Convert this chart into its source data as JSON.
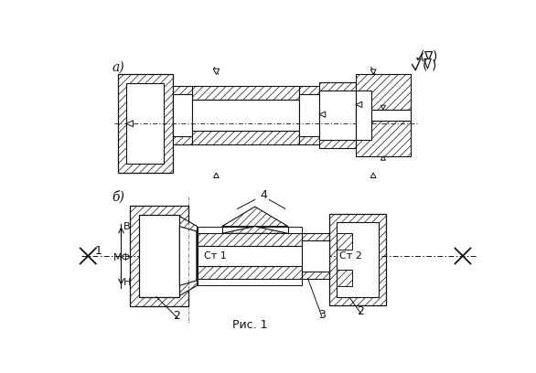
{
  "title": "Рис. 1",
  "bg_color": "#ffffff",
  "line_color": "#111111",
  "label_a": "а)",
  "label_b": "б)",
  "label_1": "1",
  "label_2": "2",
  "label_3": "3",
  "label_4": "4",
  "label_st1": "Ст 1",
  "label_st2": "Ст 2",
  "label_mf": "МФ",
  "label_B": "В",
  "label_H": "Н"
}
